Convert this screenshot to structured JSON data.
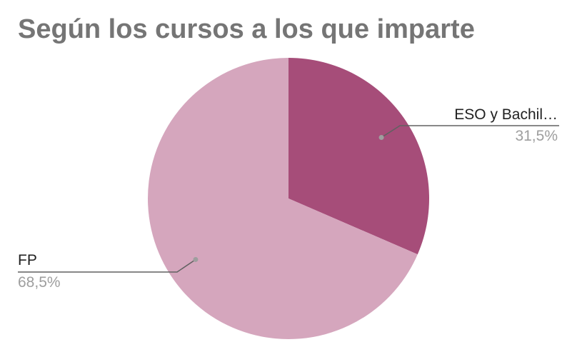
{
  "title": "Según los cursos a los que imparte",
  "chart_data": {
    "type": "pie",
    "title": "Según los cursos a los que imparte",
    "slices": [
      {
        "label": "ESO y Bachil…",
        "value": 31.5,
        "display": "31,5%",
        "color": "#a64d79"
      },
      {
        "label": "FP",
        "value": 68.5,
        "display": "68,5%",
        "color": "#d5a6bd"
      }
    ],
    "start_angle_deg": 0,
    "direction": "clockwise",
    "legend": "none",
    "label_style": "callout",
    "callout_line_color": "#616161",
    "callout_dot_color": "#9e9e9e"
  }
}
